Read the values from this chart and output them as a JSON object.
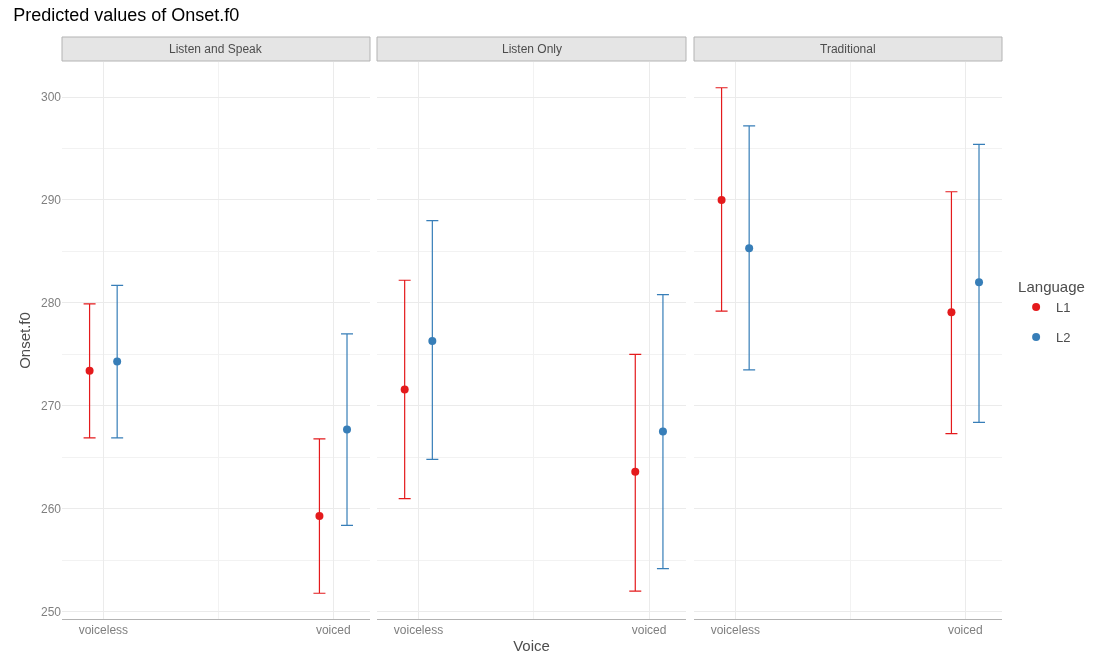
{
  "chart_data": [
    {
      "type": "scatter",
      "title": "Predicted values of Onset.f0",
      "subtitle": "Listen and Speak",
      "ylabel": "Onset.f0",
      "categories": [
        "voiceless",
        "voiced"
      ],
      "ylim": [
        249.3,
        303.4
      ],
      "yticks": [
        250,
        260,
        270,
        280,
        290,
        300
      ],
      "grid": true,
      "marker": "circle",
      "tick_labels": "xy",
      "legend": "right",
      "legend_title": "Language",
      "series": [
        {
          "name": "L1",
          "color": "#e41a1c",
          "values": [
            273.4,
            259.3
          ],
          "errors": [
            [
              266.9,
              279.9
            ],
            [
              251.8,
              266.8
            ]
          ]
        },
        {
          "name": "L2",
          "color": "#377eb8",
          "values": [
            274.3,
            267.7
          ],
          "errors": [
            [
              266.9,
              281.7
            ],
            [
              258.4,
              277.0
            ]
          ]
        }
      ]
    },
    {
      "type": "scatter",
      "subtitle": "Listen Only",
      "xlabel": "Voice",
      "categories": [
        "voiceless",
        "voiced"
      ],
      "ylim": [
        249.3,
        303.4
      ],
      "yticks": [
        250,
        260,
        270,
        280,
        290,
        300
      ],
      "grid": true,
      "marker": "circle",
      "tick_labels": "x",
      "series": [
        {
          "color": "#e41a1c",
          "values": [
            271.6,
            263.6
          ],
          "errors": [
            [
              261.0,
              282.2
            ],
            [
              252.0,
              275.0
            ]
          ]
        },
        {
          "color": "#377eb8",
          "values": [
            276.3,
            267.5
          ],
          "errors": [
            [
              264.8,
              288.0
            ],
            [
              254.2,
              280.8
            ]
          ]
        }
      ]
    },
    {
      "type": "scatter",
      "subtitle": "Traditional",
      "categories": [
        "voiceless",
        "voiced"
      ],
      "ylim": [
        249.3,
        303.4
      ],
      "yticks": [
        250,
        260,
        270,
        280,
        290,
        300
      ],
      "grid": true,
      "marker": "circle",
      "tick_labels": "x",
      "series": [
        {
          "color": "#e41a1c",
          "values": [
            290.0,
            279.1
          ],
          "errors": [
            [
              279.2,
              300.9
            ],
            [
              267.3,
              290.8
            ]
          ]
        },
        {
          "color": "#377eb8",
          "values": [
            285.3,
            282.0
          ],
          "errors": [
            [
              273.5,
              297.2
            ],
            [
              268.4,
              295.4
            ]
          ]
        }
      ]
    }
  ]
}
